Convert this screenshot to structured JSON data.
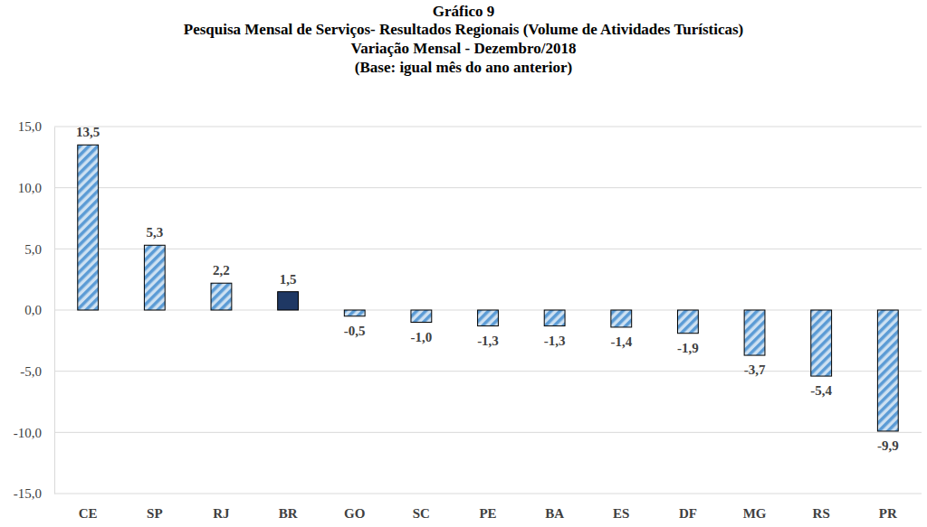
{
  "chart_data": {
    "type": "bar",
    "title": [
      "Gráfico 9",
      "Pesquisa Mensal de Serviços- Resultados Regionais (Volume de Atividades Turísticas)",
      "Variação Mensal - Dezembro/2018",
      "(Base: igual mês do ano anterior)"
    ],
    "categories": [
      "CE",
      "SP",
      "RJ",
      "BR",
      "GO",
      "SC",
      "PE",
      "BA",
      "ES",
      "DF",
      "MG",
      "RS",
      "PR"
    ],
    "values": [
      13.5,
      5.3,
      2.2,
      1.5,
      -0.5,
      -1.0,
      -1.3,
      -1.3,
      -1.4,
      -1.9,
      -3.7,
      -5.4,
      -9.9
    ],
    "value_labels": [
      "13,5",
      "5,3",
      "2,2",
      "1,5",
      "-0,5",
      "-1,0",
      "-1,3",
      "-1,3",
      "-1,4",
      "-1,9",
      "-3,7",
      "-5,4",
      "-9,9"
    ],
    "colors": [
      "#5b9bd5",
      "#5b9bd5",
      "#5b9bd5",
      "#1f3864",
      "#5b9bd5",
      "#5b9bd5",
      "#5b9bd5",
      "#5b9bd5",
      "#5b9bd5",
      "#5b9bd5",
      "#5b9bd5",
      "#5b9bd5",
      "#5b9bd5"
    ],
    "ylim": [
      -15,
      15
    ],
    "yticks": [
      {
        "value": -15,
        "label": "-15,0"
      },
      {
        "value": -10,
        "label": "-10,0"
      },
      {
        "value": -5,
        "label": "-5,0"
      },
      {
        "value": 0,
        "label": "0,0"
      },
      {
        "value": 5,
        "label": "5,0"
      },
      {
        "value": 10,
        "label": "10,0"
      },
      {
        "value": 15,
        "label": "15,0"
      }
    ],
    "grid": true,
    "data_labels": true
  }
}
